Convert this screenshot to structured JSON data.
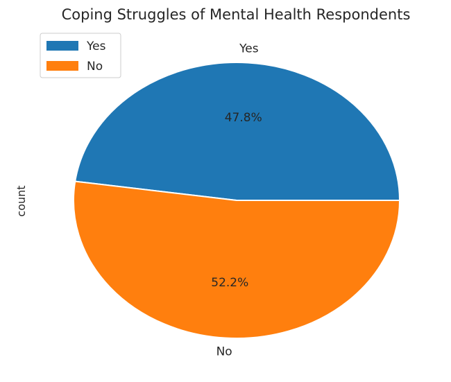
{
  "chart_data": {
    "type": "pie",
    "title": "Coping Struggles of Mental Health Respondents",
    "ylabel": "count",
    "categories": [
      "Yes",
      "No"
    ],
    "values": [
      47.8,
      52.2
    ],
    "percent_labels": [
      "47.8%",
      "52.2%"
    ],
    "colors": [
      "#1f77b4",
      "#ff7f0e"
    ],
    "legend": {
      "placement": "top-left",
      "entries": [
        "Yes",
        "No"
      ]
    }
  }
}
